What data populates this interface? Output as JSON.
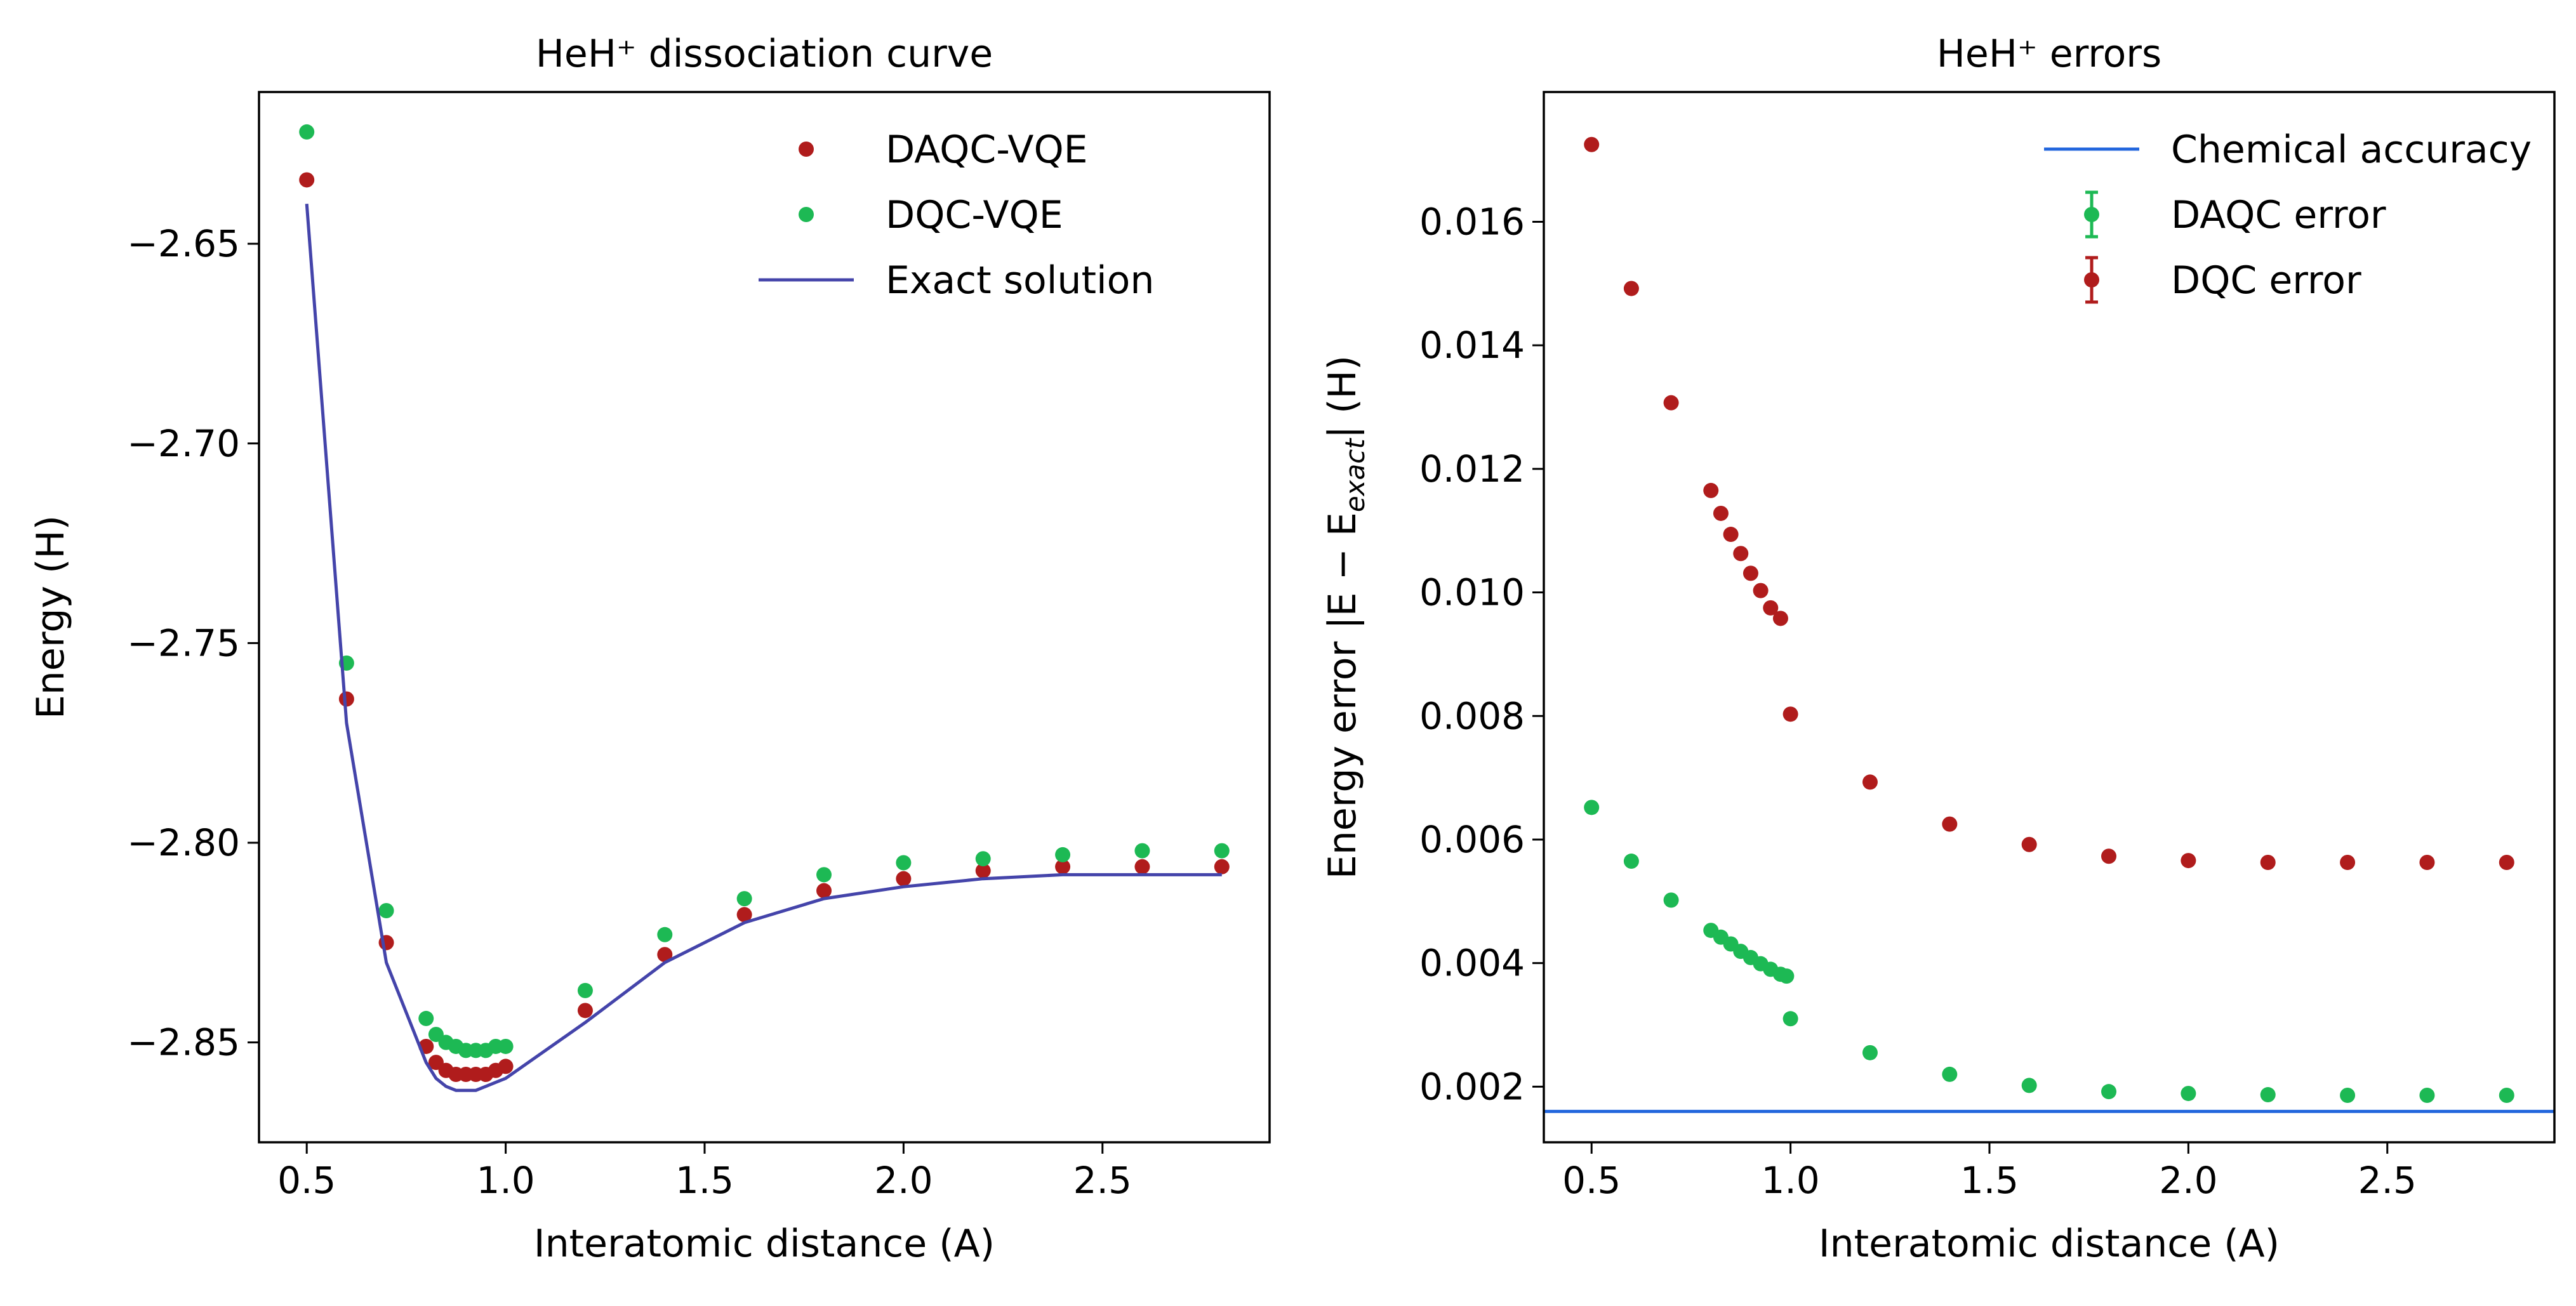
{
  "chart_data": [
    {
      "type": "scatter",
      "title": "HeH⁺ dissociation curve",
      "xlabel": "Interatomic distance (A)",
      "ylabel": "Energy (H)",
      "xlim": [
        0.38,
        2.92
      ],
      "ylim": [
        -2.875,
        -2.612
      ],
      "xticks": [
        0.5,
        1.0,
        1.5,
        2.0,
        2.5
      ],
      "yticks": [
        -2.85,
        -2.8,
        -2.75,
        -2.7,
        -2.65
      ],
      "xtick_labels": [
        "0.5",
        "1.0",
        "1.5",
        "2.0",
        "2.5"
      ],
      "ytick_labels": [
        "−2.85",
        "−2.80",
        "−2.75",
        "−2.70",
        "−2.65"
      ],
      "grid": false,
      "legend_position": "top-right",
      "series": [
        {
          "name": "DAQC-VQE",
          "kind": "scatter",
          "color": "#b01c1c",
          "x": [
            0.5,
            0.6,
            0.7,
            0.8,
            0.825,
            0.85,
            0.875,
            0.9,
            0.925,
            0.95,
            0.975,
            1.0,
            1.2,
            1.4,
            1.6,
            1.8,
            2.0,
            2.2,
            2.4,
            2.6,
            2.8
          ],
          "y": [
            -2.634,
            -2.764,
            -2.825,
            -2.851,
            -2.855,
            -2.857,
            -2.858,
            -2.858,
            -2.858,
            -2.858,
            -2.857,
            -2.856,
            -2.842,
            -2.828,
            -2.818,
            -2.812,
            -2.809,
            -2.807,
            -2.806,
            -2.806,
            -2.806
          ]
        },
        {
          "name": "DQC-VQE",
          "kind": "scatter",
          "color": "#1db954",
          "x": [
            0.5,
            0.6,
            0.7,
            0.8,
            0.825,
            0.85,
            0.875,
            0.9,
            0.925,
            0.95,
            0.975,
            1.0,
            1.2,
            1.4,
            1.6,
            1.8,
            2.0,
            2.2,
            2.4,
            2.6,
            2.8
          ],
          "y": [
            -2.622,
            -2.755,
            -2.817,
            -2.844,
            -2.848,
            -2.85,
            -2.851,
            -2.852,
            -2.852,
            -2.852,
            -2.851,
            -2.851,
            -2.837,
            -2.823,
            -2.814,
            -2.808,
            -2.805,
            -2.804,
            -2.803,
            -2.802,
            -2.802
          ]
        },
        {
          "name": "Exact solution",
          "kind": "line",
          "color": "#4444aa",
          "x": [
            0.5,
            0.6,
            0.7,
            0.8,
            0.825,
            0.85,
            0.875,
            0.9,
            0.925,
            0.95,
            0.975,
            1.0,
            1.2,
            1.4,
            1.6,
            1.8,
            2.0,
            2.2,
            2.4,
            2.6,
            2.8
          ],
          "y": [
            -2.64,
            -2.77,
            -2.83,
            -2.855,
            -2.859,
            -2.861,
            -2.862,
            -2.862,
            -2.862,
            -2.861,
            -2.86,
            -2.859,
            -2.845,
            -2.83,
            -2.82,
            -2.814,
            -2.811,
            -2.809,
            -2.808,
            -2.808,
            -2.808
          ]
        }
      ]
    },
    {
      "type": "scatter",
      "title": "HeH⁺ errors",
      "xlabel": "Interatomic distance (A)",
      "ylabel": "Energy error |E − E",
      "ylabel_sub": "exact",
      "ylabel_tail": "| (H)",
      "xlim": [
        0.38,
        2.92
      ],
      "ylim": [
        0.0011,
        0.0181
      ],
      "xticks": [
        0.5,
        1.0,
        1.5,
        2.0,
        2.5
      ],
      "yticks": [
        0.002,
        0.004,
        0.006,
        0.008,
        0.01,
        0.012,
        0.014,
        0.016
      ],
      "xtick_labels": [
        "0.5",
        "1.0",
        "1.5",
        "2.0",
        "2.5"
      ],
      "ytick_labels": [
        "0.002",
        "0.004",
        "0.006",
        "0.008",
        "0.010",
        "0.012",
        "0.014",
        "0.016"
      ],
      "grid": false,
      "legend_position": "top-right",
      "series": [
        {
          "name": "Chemical accuracy",
          "kind": "hline",
          "color": "#2266dd",
          "y": 0.0016
        },
        {
          "name": "DAQC error",
          "kind": "errorbar",
          "color": "#1db954",
          "x": [
            0.5,
            0.6,
            0.7,
            0.8,
            0.825,
            0.85,
            0.875,
            0.9,
            0.925,
            0.95,
            0.975,
            0.99,
            1.0,
            1.2,
            1.4,
            1.6,
            1.8,
            2.0,
            2.2,
            2.4,
            2.6,
            2.8
          ],
          "y": [
            0.00652,
            0.00565,
            0.00502,
            0.00453,
            0.00442,
            0.00431,
            0.00419,
            0.00409,
            0.00399,
            0.0039,
            0.00382,
            0.00379,
            0.0031,
            0.00255,
            0.0022,
            0.00202,
            0.00192,
            0.00189,
            0.00187,
            0.00186,
            0.00186,
            0.00186
          ]
        },
        {
          "name": "DQC error",
          "kind": "errorbar",
          "color": "#b01c1c",
          "x": [
            0.5,
            0.6,
            0.7,
            0.8,
            0.825,
            0.85,
            0.875,
            0.9,
            0.925,
            0.95,
            0.975,
            1.0,
            1.2,
            1.4,
            1.6,
            1.8,
            2.0,
            2.2,
            2.4,
            2.6,
            2.8
          ],
          "y": [
            0.01725,
            0.01492,
            0.01307,
            0.01165,
            0.01128,
            0.01094,
            0.01063,
            0.01031,
            0.01003,
            0.00975,
            0.00958,
            0.00803,
            0.00693,
            0.00625,
            0.00592,
            0.00573,
            0.00566,
            0.00563,
            0.00563,
            0.00563,
            0.00563
          ]
        }
      ]
    }
  ]
}
